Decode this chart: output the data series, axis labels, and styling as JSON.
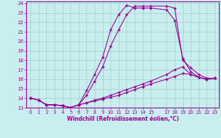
{
  "xlabel": "Windchill (Refroidissement éolien,°C)",
  "bg_color": "#c8eef0",
  "line_color": "#990099",
  "grid_color": "#a0cccc",
  "xlim": [
    -0.5,
    23.5
  ],
  "ylim": [
    13,
    24.2
  ],
  "xticks": [
    0,
    1,
    2,
    3,
    4,
    5,
    6,
    7,
    8,
    9,
    10,
    11,
    12,
    13,
    14,
    15,
    17,
    18,
    19,
    20,
    21,
    22,
    23
  ],
  "yticks": [
    13,
    14,
    15,
    16,
    17,
    18,
    19,
    20,
    21,
    22,
    23,
    24
  ],
  "curves": [
    {
      "x": [
        0,
        1,
        2,
        3,
        4,
        5,
        6,
        7,
        8,
        9,
        10,
        11,
        12,
        13,
        14,
        15,
        17,
        18,
        19,
        20,
        21,
        22,
        23
      ],
      "y": [
        14.0,
        13.8,
        13.3,
        13.3,
        13.2,
        13.0,
        13.3,
        14.8,
        16.5,
        18.3,
        21.2,
        22.8,
        23.8,
        23.5,
        23.5,
        23.5,
        23.3,
        22.2,
        18.2,
        16.8,
        16.2,
        16.0,
        16.1
      ],
      "linestyle": "-",
      "marker": "+"
    },
    {
      "x": [
        0,
        1,
        2,
        3,
        4,
        5,
        6,
        7,
        8,
        9,
        10,
        11,
        12,
        13,
        14,
        15,
        17,
        18,
        19,
        20,
        21,
        22,
        23
      ],
      "y": [
        14.0,
        13.8,
        13.3,
        13.3,
        13.2,
        13.0,
        13.3,
        14.3,
        15.8,
        17.3,
        19.5,
        21.2,
        22.8,
        23.7,
        23.7,
        23.7,
        23.7,
        23.5,
        18.0,
        17.2,
        16.5,
        16.1,
        16.1
      ],
      "linestyle": "-",
      "marker": "+"
    },
    {
      "x": [
        0,
        1,
        2,
        3,
        4,
        5,
        6,
        7,
        8,
        9,
        10,
        11,
        12,
        13,
        14,
        15,
        17,
        18,
        19,
        20,
        21,
        22,
        23
      ],
      "y": [
        14.0,
        13.8,
        13.3,
        13.3,
        13.2,
        13.0,
        13.3,
        13.5,
        13.8,
        14.0,
        14.3,
        14.6,
        14.9,
        15.2,
        15.5,
        15.8,
        16.5,
        17.0,
        17.3,
        16.5,
        16.2,
        16.0,
        16.1
      ],
      "linestyle": "-",
      "marker": "+"
    },
    {
      "x": [
        0,
        1,
        2,
        3,
        4,
        5,
        6,
        7,
        8,
        9,
        10,
        11,
        12,
        13,
        14,
        15,
        17,
        18,
        19,
        20,
        21,
        22,
        23
      ],
      "y": [
        14.0,
        13.8,
        13.3,
        13.3,
        13.2,
        13.0,
        13.3,
        13.5,
        13.7,
        13.9,
        14.1,
        14.3,
        14.6,
        14.9,
        15.2,
        15.5,
        16.0,
        16.3,
        16.6,
        16.5,
        16.2,
        16.0,
        16.1
      ],
      "linestyle": "-",
      "marker": "+"
    }
  ],
  "markersize": 3,
  "linewidth": 0.8
}
